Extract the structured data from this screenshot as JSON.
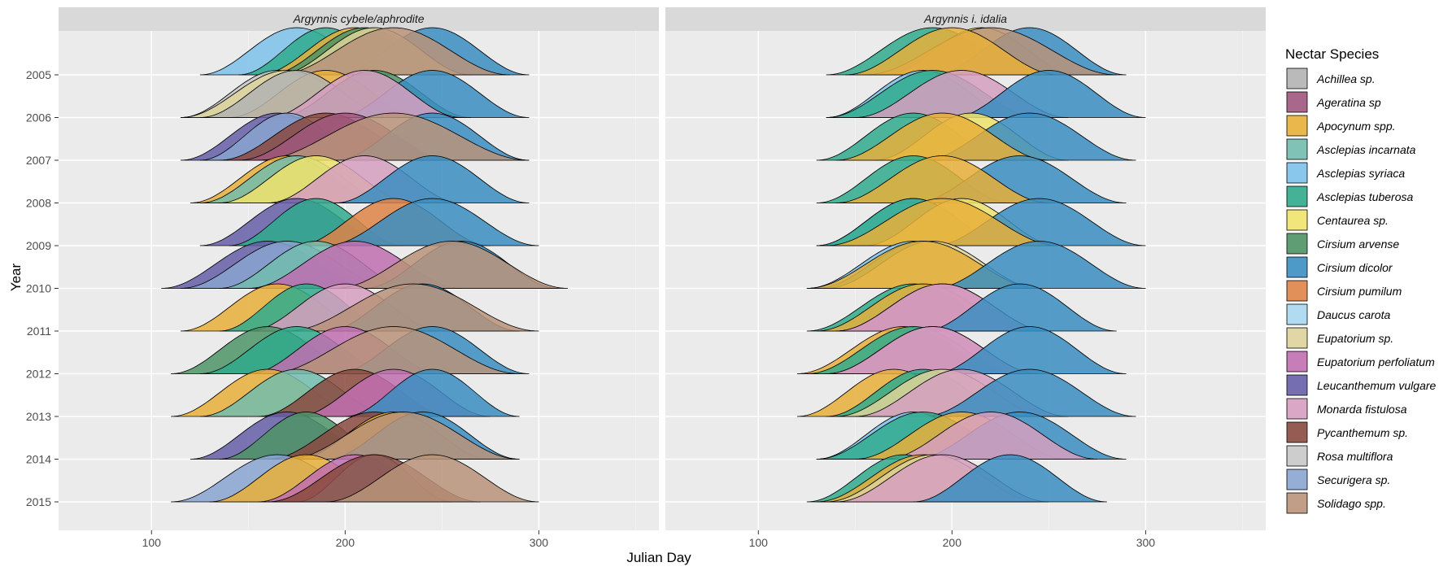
{
  "chart_data": {
    "type": "area",
    "subtype": "ridgeline-density",
    "title": "",
    "xlabel": "Julian Day",
    "ylabel": "Year",
    "xlim": [
      52,
      362
    ],
    "xticks": [
      100,
      200,
      300
    ],
    "years": [
      "2005",
      "2006",
      "2007",
      "2008",
      "2009",
      "2010",
      "2011",
      "2012",
      "2013",
      "2014",
      "2015"
    ],
    "grid": true,
    "legend": {
      "title": "Nectar Species",
      "placement": "right",
      "entries": [
        {
          "key": "ach",
          "name": "Achillea sp.",
          "color": "#B3B3B3"
        },
        {
          "key": "age",
          "name": "Ageratina sp",
          "color": "#A0577E"
        },
        {
          "key": "apo",
          "name": "Apocynum spp.",
          "color": "#E8AF3A"
        },
        {
          "key": "ain",
          "name": "Asclepias incarnata",
          "color": "#72BCAE"
        },
        {
          "key": "asy",
          "name": "Asclepias syriaca",
          "color": "#7DC1EA"
        },
        {
          "key": "atu",
          "name": "Asclepias tuberosa",
          "color": "#2FAA8C"
        },
        {
          "key": "cen",
          "name": "Centaurea sp.",
          "color": "#EEE36C"
        },
        {
          "key": "car",
          "name": "Cirsium arvense",
          "color": "#4E9466"
        },
        {
          "key": "cdi",
          "name": "Cirsium dicolor",
          "color": "#3A8EC1"
        },
        {
          "key": "cpu",
          "name": "Cirsium pumilum",
          "color": "#DF8447"
        },
        {
          "key": "dau",
          "name": "Daucus carota",
          "color": "#A7D7F0"
        },
        {
          "key": "eup",
          "name": "Eupatorium sp.",
          "color": "#DDD39A"
        },
        {
          "key": "epe",
          "name": "Eupatorium perfoliatum",
          "color": "#C16FB0"
        },
        {
          "key": "leu",
          "name": "Leucanthemum vulgare",
          "color": "#665EA8"
        },
        {
          "key": "mon",
          "name": "Monarda fistulosa",
          "color": "#D69FC0"
        },
        {
          "key": "pyc",
          "name": "Pycanthemum sp.",
          "color": "#8A4A40"
        },
        {
          "key": "ros",
          "name": "Rosa multiflora",
          "color": "#C8C8C8"
        },
        {
          "key": "sec",
          "name": "Securigera sp.",
          "color": "#88A5D0"
        },
        {
          "key": "sol",
          "name": "Solidago spp.",
          "color": "#B9937A"
        }
      ]
    },
    "panels": [
      {
        "title": "Argynnis cybele/aphrodite",
        "rows": {
          "2005": [
            [
              "asy",
              175,
              50
            ],
            [
              "atu",
              190,
              45
            ],
            [
              "apo",
              205,
              50
            ],
            [
              "car",
              210,
              50
            ],
            [
              "cdi",
              245,
              50
            ],
            [
              "eup",
              215,
              50
            ],
            [
              "sol",
              225,
              60
            ]
          ],
          "2006": [
            [
              "ros",
              165,
              50
            ],
            [
              "eup",
              170,
              55
            ],
            [
              "apo",
              190,
              50
            ],
            [
              "ach",
              175,
              50
            ],
            [
              "car",
              215,
              50
            ],
            [
              "cdi",
              245,
              50
            ],
            [
              "mon",
              210,
              50
            ]
          ],
          "2007": [
            [
              "leu",
              165,
              50
            ],
            [
              "sec",
              170,
              45
            ],
            [
              "pyc",
              190,
              55
            ],
            [
              "age",
              200,
              55
            ],
            [
              "cdi",
              245,
              50
            ],
            [
              "sol",
              225,
              70
            ]
          ],
          "2008": [
            [
              "apo",
              170,
              50
            ],
            [
              "ain",
              175,
              50
            ],
            [
              "cen",
              185,
              50
            ],
            [
              "mon",
              210,
              50
            ],
            [
              "cdi",
              245,
              50
            ]
          ],
          "2009": [
            [
              "leu",
              175,
              50
            ],
            [
              "atu",
              185,
              45
            ],
            [
              "cpu",
              225,
              50
            ],
            [
              "cdi",
              245,
              55
            ]
          ],
          "2010": [
            [
              "leu",
              160,
              55
            ],
            [
              "sec",
              170,
              55
            ],
            [
              "ain",
              185,
              50
            ],
            [
              "epe",
              205,
              55
            ],
            [
              "cdi",
              260,
              50
            ],
            [
              "sol",
              255,
              60
            ]
          ],
          "2011": [
            [
              "apo",
              165,
              50
            ],
            [
              "atu",
              180,
              45
            ],
            [
              "mon",
              200,
              50
            ],
            [
              "cdi",
              240,
              50
            ],
            [
              "sol",
              235,
              65
            ]
          ],
          "2012": [
            [
              "car",
              160,
              50
            ],
            [
              "atu",
              175,
              50
            ],
            [
              "epe",
              200,
              50
            ],
            [
              "cdi",
              245,
              50
            ],
            [
              "sol",
              225,
              65
            ]
          ],
          "2013": [
            [
              "apo",
              160,
              50
            ],
            [
              "ain",
              175,
              50
            ],
            [
              "pyc",
              205,
              50
            ],
            [
              "epe",
              225,
              50
            ],
            [
              "cdi",
              245,
              45
            ]
          ],
          "2014": [
            [
              "leu",
              170,
              50
            ],
            [
              "car",
              180,
              45
            ],
            [
              "pyc",
              215,
              55
            ],
            [
              "apo",
              225,
              50
            ],
            [
              "cdi",
              240,
              50
            ],
            [
              "sol",
              230,
              60
            ]
          ],
          "2015": [
            [
              "sec",
              165,
              55
            ],
            [
              "apo",
              180,
              50
            ],
            [
              "epe",
              205,
              50
            ],
            [
              "dau",
              215,
              40
            ],
            [
              "pyc",
              215,
              55
            ],
            [
              "sol",
              245,
              55
            ]
          ]
        }
      },
      {
        "title": "Argynnis i. idalia",
        "rows": {
          "2005": [
            [
              "atu",
              190,
              55
            ],
            [
              "cen",
              215,
              50
            ],
            [
              "cdi",
              240,
              50
            ],
            [
              "sol",
              220,
              65
            ],
            [
              "apo",
              200,
              55
            ]
          ],
          "2006": [
            [
              "asy",
              185,
              50
            ],
            [
              "atu",
              190,
              55
            ],
            [
              "mon",
              205,
              55
            ],
            [
              "cdi",
              250,
              50
            ]
          ],
          "2007": [
            [
              "atu",
              180,
              50
            ],
            [
              "cen",
              210,
              50
            ],
            [
              "cdi",
              240,
              55
            ],
            [
              "apo",
              195,
              55
            ]
          ],
          "2008": [
            [
              "atu",
              180,
              50
            ],
            [
              "cdi",
              235,
              55
            ],
            [
              "apo",
              195,
              55
            ]
          ],
          "2009": [
            [
              "asy",
              180,
              50
            ],
            [
              "atu",
              180,
              50
            ],
            [
              "cen",
              205,
              50
            ],
            [
              "cdi",
              245,
              55
            ],
            [
              "apo",
              195,
              60
            ]
          ],
          "2010": [
            [
              "asy",
              180,
              55
            ],
            [
              "atu",
              185,
              55
            ],
            [
              "eup",
              190,
              55
            ],
            [
              "apo",
              185,
              60
            ],
            [
              "cdi",
              245,
              55
            ]
          ],
          "2011": [
            [
              "atu",
              180,
              55
            ],
            [
              "apo",
              185,
              55
            ],
            [
              "epe",
              195,
              55
            ],
            [
              "mon",
              195,
              55
            ],
            [
              "cdi",
              235,
              50
            ]
          ],
          "2012": [
            [
              "apo",
              175,
              55
            ],
            [
              "atu",
              180,
              55
            ],
            [
              "epe",
              190,
              55
            ],
            [
              "mon",
              190,
              55
            ],
            [
              "cdi",
              240,
              50
            ]
          ],
          "2013": [
            [
              "apo",
              170,
              50
            ],
            [
              "atu",
              185,
              50
            ],
            [
              "eup",
              195,
              55
            ],
            [
              "mon",
              205,
              55
            ],
            [
              "cdi",
              240,
              55
            ]
          ],
          "2014": [
            [
              "asy",
              180,
              50
            ],
            [
              "atu",
              185,
              55
            ],
            [
              "apo",
              205,
              55
            ],
            [
              "cdi",
              235,
              55
            ],
            [
              "mon",
              220,
              55
            ]
          ],
          "2015": [
            [
              "atu",
              175,
              50
            ],
            [
              "apo",
              185,
              55
            ],
            [
              "eup",
              190,
              55
            ],
            [
              "mon",
              195,
              55
            ],
            [
              "cdi",
              230,
              50
            ]
          ]
        }
      }
    ]
  }
}
